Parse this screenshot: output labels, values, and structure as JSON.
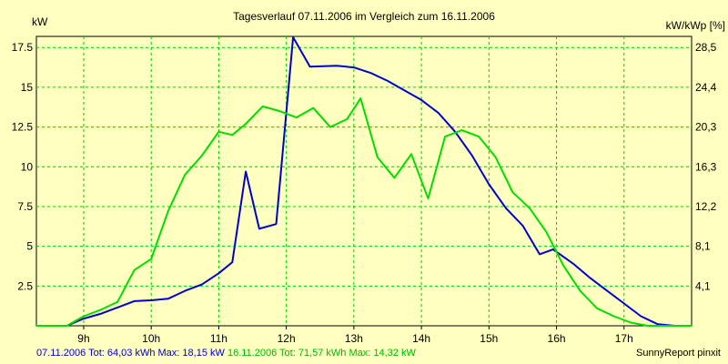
{
  "chart_data": {
    "type": "line",
    "title": "Tagesverlauf 07.11.2006 im Vergleich zum 16.11.2006",
    "ylabel_left": "kW",
    "ylabel_right": "kW/kWp [%]",
    "xlim": [
      8.3,
      18.0
    ],
    "ylim": [
      0,
      18.2
    ],
    "grid": true,
    "x_ticks": [
      {
        "x": 9,
        "label": "9h"
      },
      {
        "x": 10,
        "label": "10h"
      },
      {
        "x": 11,
        "label": "11h"
      },
      {
        "x": 12,
        "label": "12h"
      },
      {
        "x": 13,
        "label": "13h"
      },
      {
        "x": 14,
        "label": "14h"
      },
      {
        "x": 15,
        "label": "15h"
      },
      {
        "x": 16,
        "label": "16h"
      },
      {
        "x": 17,
        "label": "17h"
      }
    ],
    "y_ticks_left": [
      {
        "y": 2.5,
        "label": "2.5"
      },
      {
        "y": 5,
        "label": "5"
      },
      {
        "y": 7.5,
        "label": "7.5"
      },
      {
        "y": 10,
        "label": "10"
      },
      {
        "y": 12.5,
        "label": "12.5"
      },
      {
        "y": 15,
        "label": "15"
      },
      {
        "y": 17.5,
        "label": "17.5"
      }
    ],
    "y_ticks_right": [
      {
        "y": 2.5,
        "label": "4,1"
      },
      {
        "y": 5,
        "label": "8,1"
      },
      {
        "y": 7.5,
        "label": "12,2"
      },
      {
        "y": 10,
        "label": "16,3"
      },
      {
        "y": 12.5,
        "label": "20,3"
      },
      {
        "y": 15,
        "label": "24,4"
      },
      {
        "y": 17.5,
        "label": "28,5"
      }
    ],
    "series": [
      {
        "name": "07.11.2006",
        "color": "#0000cc",
        "points": [
          [
            8.3,
            0
          ],
          [
            8.75,
            0
          ],
          [
            9.0,
            0.45
          ],
          [
            9.25,
            0.75
          ],
          [
            9.5,
            1.15
          ],
          [
            9.75,
            1.55
          ],
          [
            10.0,
            1.6
          ],
          [
            10.25,
            1.7
          ],
          [
            10.5,
            2.2
          ],
          [
            10.75,
            2.6
          ],
          [
            11.0,
            3.3
          ],
          [
            11.2,
            4.0
          ],
          [
            11.4,
            9.7
          ],
          [
            11.6,
            6.1
          ],
          [
            11.85,
            6.4
          ],
          [
            12.1,
            18.15
          ],
          [
            12.35,
            16.3
          ],
          [
            12.75,
            16.35
          ],
          [
            13.0,
            16.25
          ],
          [
            13.25,
            15.9
          ],
          [
            13.5,
            15.4
          ],
          [
            13.75,
            14.8
          ],
          [
            14.0,
            14.2
          ],
          [
            14.25,
            13.4
          ],
          [
            14.5,
            12.2
          ],
          [
            14.75,
            10.7
          ],
          [
            15.0,
            8.9
          ],
          [
            15.25,
            7.4
          ],
          [
            15.5,
            6.3
          ],
          [
            15.75,
            4.5
          ],
          [
            15.95,
            4.8
          ],
          [
            16.25,
            3.9
          ],
          [
            16.5,
            3.0
          ],
          [
            16.75,
            2.2
          ],
          [
            17.0,
            1.4
          ],
          [
            17.25,
            0.6
          ],
          [
            17.5,
            0.1
          ],
          [
            17.75,
            0
          ],
          [
            18.0,
            0
          ]
        ]
      },
      {
        "name": "16.11.2006",
        "color": "#00dd00",
        "points": [
          [
            8.3,
            0
          ],
          [
            8.75,
            0
          ],
          [
            9.0,
            0.6
          ],
          [
            9.25,
            1.0
          ],
          [
            9.5,
            1.5
          ],
          [
            9.75,
            3.5
          ],
          [
            10.0,
            4.2
          ],
          [
            10.25,
            7.2
          ],
          [
            10.5,
            9.5
          ],
          [
            10.75,
            10.7
          ],
          [
            11.0,
            12.2
          ],
          [
            11.2,
            12.0
          ],
          [
            11.4,
            12.7
          ],
          [
            11.65,
            13.8
          ],
          [
            11.9,
            13.5
          ],
          [
            12.15,
            13.1
          ],
          [
            12.4,
            13.7
          ],
          [
            12.65,
            12.5
          ],
          [
            12.9,
            13.0
          ],
          [
            13.1,
            14.3
          ],
          [
            13.35,
            10.6
          ],
          [
            13.6,
            9.3
          ],
          [
            13.85,
            10.8
          ],
          [
            14.1,
            8.0
          ],
          [
            14.35,
            11.9
          ],
          [
            14.6,
            12.3
          ],
          [
            14.85,
            11.9
          ],
          [
            15.1,
            10.6
          ],
          [
            15.35,
            8.4
          ],
          [
            15.6,
            7.4
          ],
          [
            15.85,
            5.9
          ],
          [
            16.1,
            3.8
          ],
          [
            16.35,
            2.2
          ],
          [
            16.6,
            1.1
          ],
          [
            16.85,
            0.6
          ],
          [
            17.1,
            0.2
          ],
          [
            17.35,
            0
          ],
          [
            18.0,
            0
          ]
        ]
      }
    ]
  },
  "footer": {
    "legend_day1": "07.11.2006 Tot: 64,03 kWh Max: 18,15 kW",
    "legend_day2": "16.11.2006 Tot: 71,57 kWh Max: 14,32 kW",
    "credit": "SunnyReport pinxit"
  },
  "colors": {
    "background": "#ffffc0",
    "grid": "#00cc00",
    "day1": "#0000cc",
    "day2": "#00dd00"
  }
}
